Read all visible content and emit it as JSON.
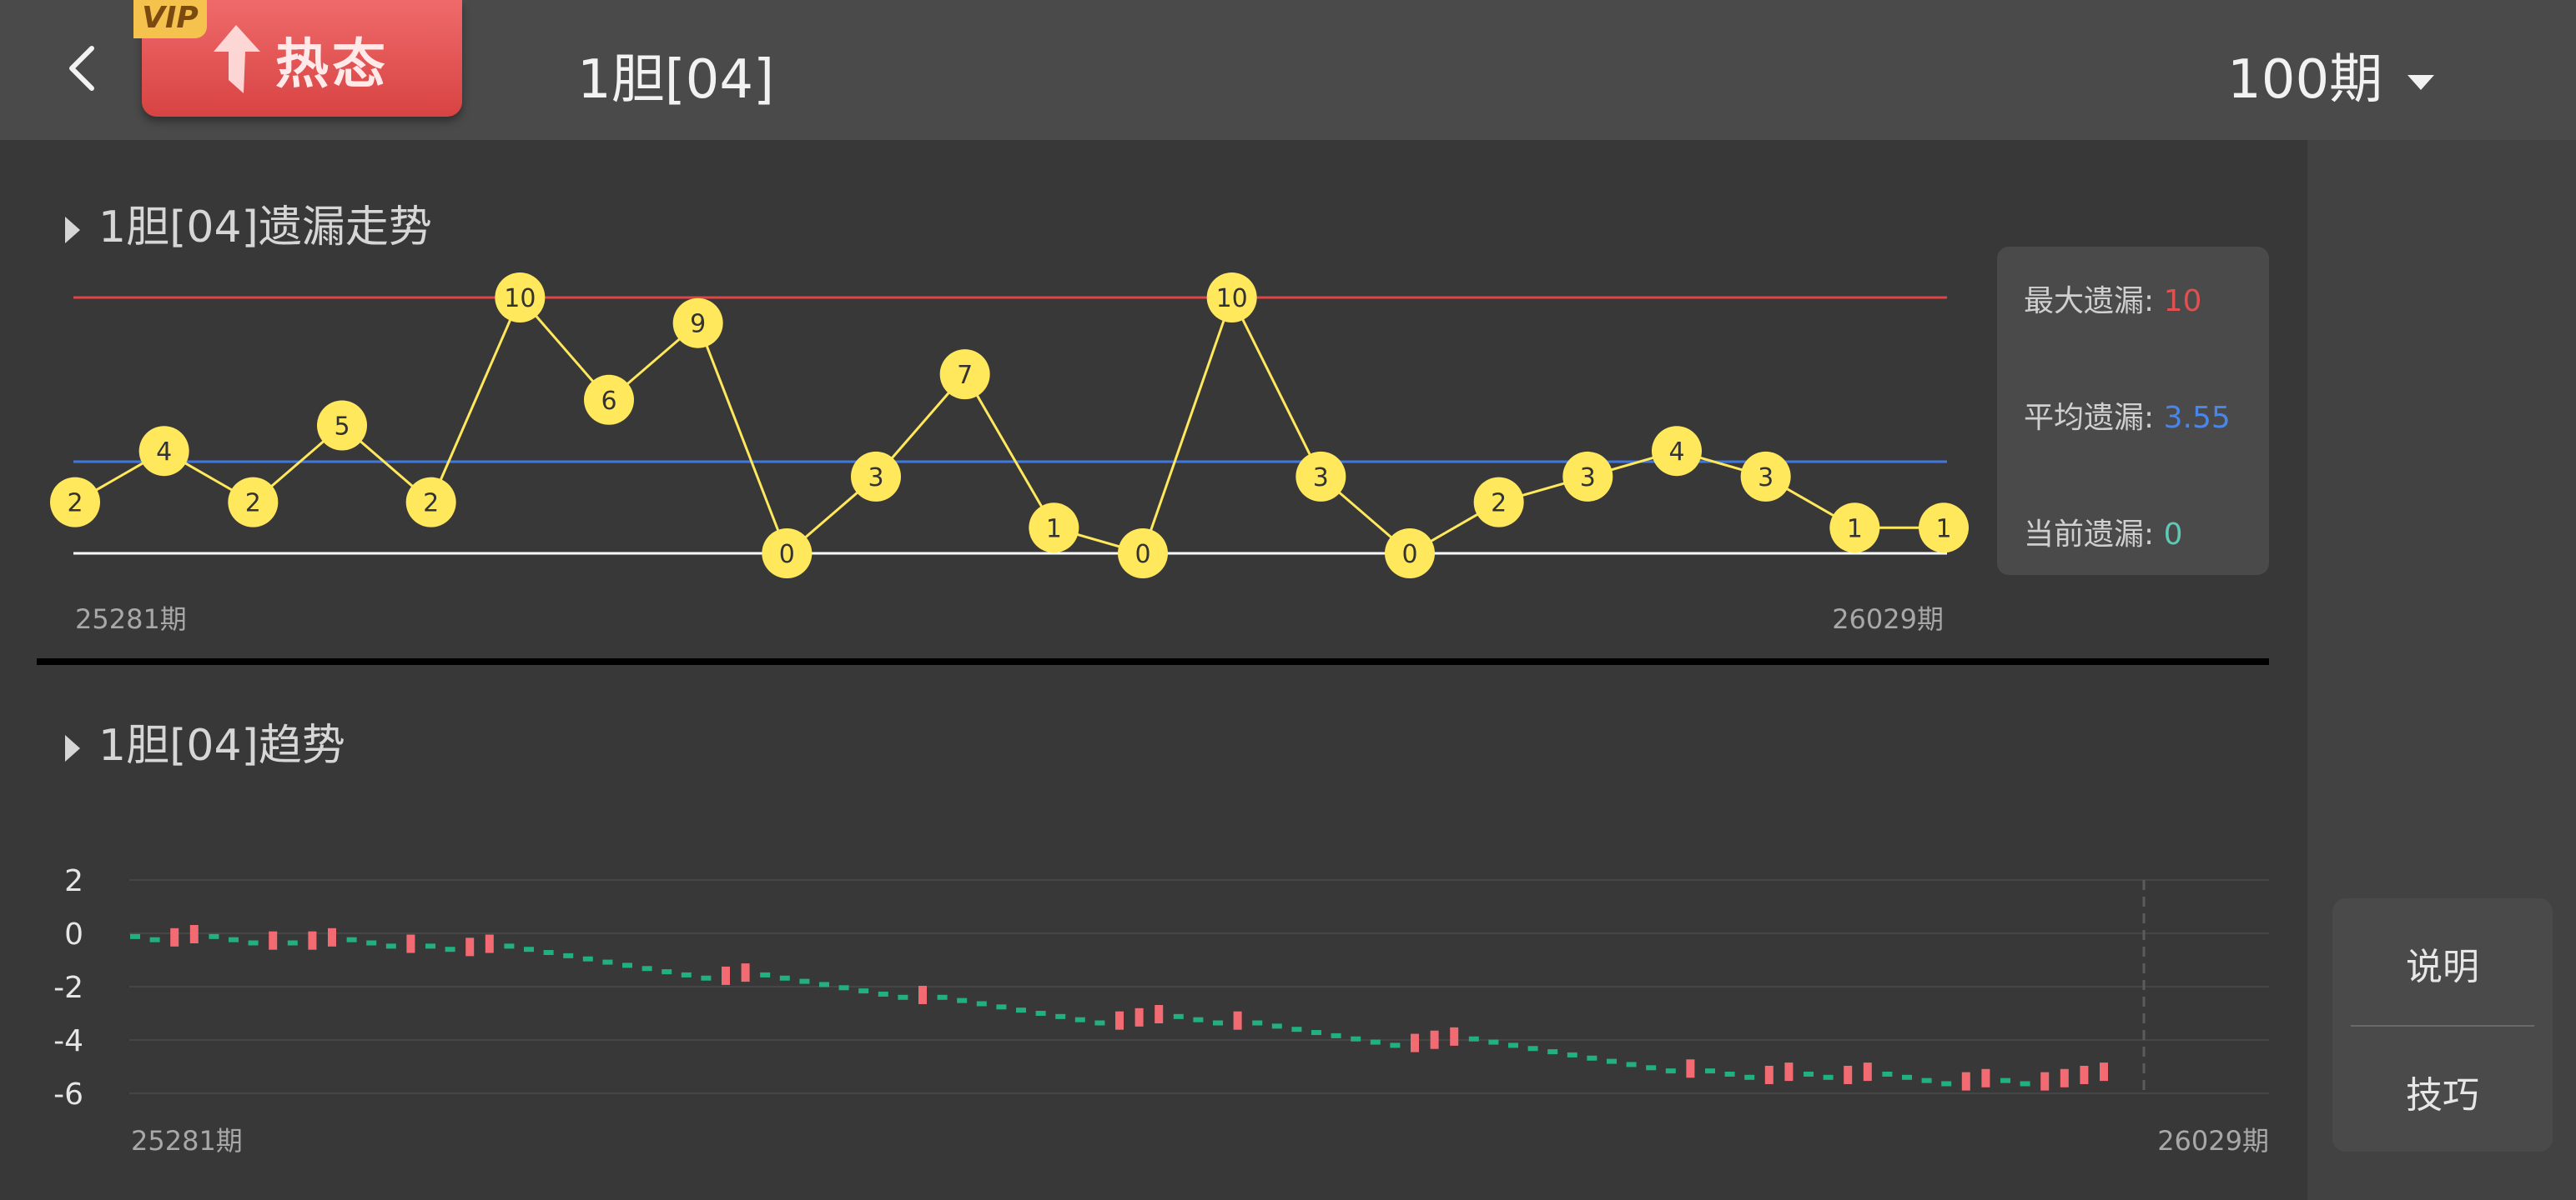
{
  "header": {
    "back": "返回",
    "vip": "VIP",
    "hot_label": "热态",
    "title": "1胆[04]",
    "period": "100期"
  },
  "colors": {
    "max_line": "#e04444",
    "avg_line": "#3f78e0",
    "base_line": "#ffffff",
    "node": "#ffe85c",
    "up": "#f26b73",
    "down": "#22b07e",
    "max_value": "#e05050",
    "avg_value": "#4a86e8",
    "cur_value": "#5fc9b8"
  },
  "omission_section": {
    "title": "1胆[04]遗漏走势",
    "start_label": "25281期",
    "end_label": "26029期",
    "stats": {
      "max_label": "最大遗漏:",
      "max_value": "10",
      "avg_label": "平均遗漏:",
      "avg_value": "3.55",
      "cur_label": "当前遗漏:",
      "cur_value": "0"
    }
  },
  "trend_section": {
    "title": "1胆[04]趋势",
    "start_label": "25281期",
    "end_label": "26029期"
  },
  "chart_data": [
    {
      "type": "line",
      "title": "1胆[04]遗漏走势",
      "x": [
        "25281期",
        "",
        "",
        "",
        "",
        "",
        "",
        "",
        "",
        "",
        "",
        "",
        "",
        "",
        "",
        "",
        "",
        "",
        "",
        "",
        "",
        "26029期"
      ],
      "values": [
        2,
        4,
        2,
        5,
        2,
        10,
        6,
        9,
        0,
        3,
        7,
        1,
        0,
        10,
        3,
        0,
        2,
        3,
        4,
        3,
        1,
        1
      ],
      "reference_lines": {
        "max": 10,
        "avg": 3.55,
        "base": 0
      },
      "ylim": [
        0,
        10
      ]
    },
    {
      "type": "bar",
      "title": "1胆[04]趋势",
      "yticks": [
        "2",
        "0",
        "-2",
        "-4",
        "-6"
      ],
      "ylim": [
        -6,
        2
      ],
      "start_label": "25281期",
      "end_label": "26029期",
      "steps": [
        -1,
        -1,
        1,
        1,
        -1,
        -1,
        -1,
        1,
        -1,
        1,
        1,
        -1,
        -1,
        -1,
        1,
        -1,
        -1,
        1,
        1,
        -1,
        -1,
        -1,
        -1,
        -1,
        -1,
        -1,
        -1,
        -1,
        -1,
        -1,
        1,
        1,
        -1,
        -1,
        -1,
        -1,
        -1,
        -1,
        -1,
        -1,
        1,
        -1,
        -1,
        -1,
        -1,
        -1,
        -1,
        -1,
        -1,
        -1,
        1,
        1,
        1,
        -1,
        -1,
        -1,
        1,
        -1,
        -1,
        -1,
        -1,
        -1,
        -1,
        -1,
        -1,
        1,
        1,
        1,
        -1,
        -1,
        -1,
        -1,
        -1,
        -1,
        -1,
        -1,
        -1,
        -1,
        -1,
        1,
        -1,
        -1,
        -1,
        1,
        1,
        -1,
        -1,
        1,
        1,
        -1,
        -1,
        -1,
        -1,
        1,
        1,
        -1,
        -1,
        1,
        1,
        1,
        1
      ]
    }
  ]
}
